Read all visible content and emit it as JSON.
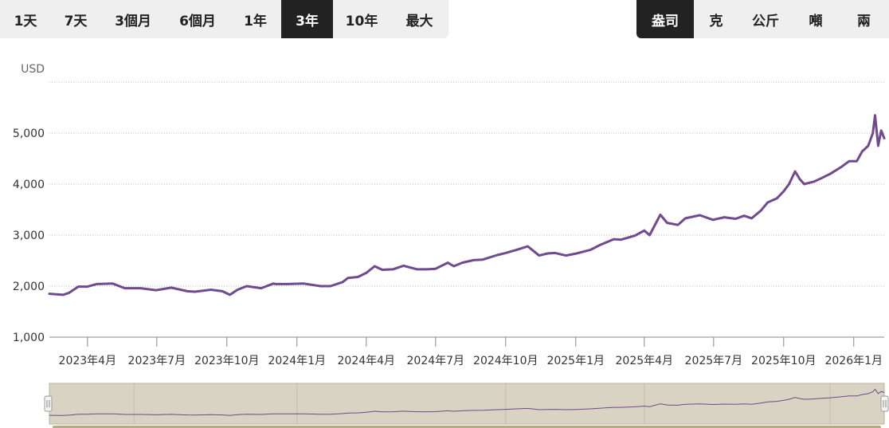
{
  "range_buttons": [
    {
      "label": "1天",
      "active": false
    },
    {
      "label": "7天",
      "active": false
    },
    {
      "label": "3個月",
      "active": false
    },
    {
      "label": "6個月",
      "active": false
    },
    {
      "label": "1年",
      "active": false
    },
    {
      "label": "3年",
      "active": true
    },
    {
      "label": "10年",
      "active": false
    },
    {
      "label": "最大",
      "active": false
    }
  ],
  "unit_buttons": [
    {
      "label": "盎司",
      "active": true
    },
    {
      "label": "克",
      "active": false
    },
    {
      "label": "公斤",
      "active": false
    },
    {
      "label": "噸",
      "active": false
    },
    {
      "label": "兩",
      "active": false
    }
  ],
  "colors": {
    "line": "#6f4a8e",
    "navigator_bg": "#d8d3c2",
    "active_button": "#222222",
    "button_bg": "#efefef"
  },
  "chart_data": {
    "type": "line",
    "ylabel": "USD",
    "ylim": [
      1000,
      6000
    ],
    "yticks": [
      "1,000",
      "2,000",
      "3,000",
      "4,000",
      "5,000"
    ],
    "yvalues": [
      1000,
      2000,
      3000,
      4000,
      5000
    ],
    "xlabels": [
      "2023年4月",
      "2023年7月",
      "2023年10月",
      "2024年1月",
      "2024年4月",
      "2024年7月",
      "2024年10月",
      "2025年1月",
      "2025年4月",
      "2025年7月",
      "2025年10月",
      "2026年1月"
    ],
    "xlabel_dates": [
      "2023-04-01",
      "2023-07-01",
      "2023-10-01",
      "2024-01-01",
      "2024-04-01",
      "2024-07-01",
      "2024-10-01",
      "2025-01-01",
      "2025-04-01",
      "2025-07-01",
      "2025-10-01",
      "2026-01-01"
    ],
    "x_range": [
      "2023-02-10",
      "2026-02-10"
    ],
    "grid": true,
    "series": [
      {
        "x": [
          "2023-02-10",
          "2023-02-28",
          "2023-03-08",
          "2023-03-20",
          "2023-04-01",
          "2023-04-13",
          "2023-05-04",
          "2023-05-20",
          "2023-06-10",
          "2023-06-30",
          "2023-07-20",
          "2023-08-10",
          "2023-08-20",
          "2023-09-10",
          "2023-09-25",
          "2023-10-05",
          "2023-10-15",
          "2023-10-27",
          "2023-11-15",
          "2023-12-01",
          "2023-12-04",
          "2023-12-20",
          "2024-01-10",
          "2024-02-01",
          "2024-02-14",
          "2024-03-01",
          "2024-03-08",
          "2024-03-21",
          "2024-04-01",
          "2024-04-12",
          "2024-04-22",
          "2024-05-06",
          "2024-05-20",
          "2024-06-07",
          "2024-06-20",
          "2024-07-01",
          "2024-07-17",
          "2024-07-25",
          "2024-08-05",
          "2024-08-20",
          "2024-09-01",
          "2024-09-20",
          "2024-10-01",
          "2024-10-15",
          "2024-10-30",
          "2024-11-14",
          "2024-11-25",
          "2024-12-05",
          "2024-12-19",
          "2025-01-02",
          "2025-01-20",
          "2025-02-01",
          "2025-02-20",
          "2025-03-01",
          "2025-03-20",
          "2025-04-01",
          "2025-04-08",
          "2025-04-22",
          "2025-05-01",
          "2025-05-15",
          "2025-05-25",
          "2025-06-13",
          "2025-06-30",
          "2025-07-15",
          "2025-07-30",
          "2025-08-10",
          "2025-08-20",
          "2025-09-01",
          "2025-09-10",
          "2025-09-22",
          "2025-10-01",
          "2025-10-08",
          "2025-10-16",
          "2025-10-22",
          "2025-10-28",
          "2025-11-10",
          "2025-11-20",
          "2025-12-01",
          "2025-12-15",
          "2025-12-26",
          "2026-01-05",
          "2026-01-12",
          "2026-01-20",
          "2026-01-26",
          "2026-01-29",
          "2026-02-02",
          "2026-02-06",
          "2026-02-10"
        ],
        "values": [
          1850,
          1830,
          1870,
          1990,
          1990,
          2040,
          2050,
          1960,
          1960,
          1920,
          1970,
          1900,
          1890,
          1930,
          1900,
          1830,
          1930,
          2000,
          1960,
          2050,
          2040,
          2040,
          2050,
          2000,
          2000,
          2080,
          2160,
          2180,
          2260,
          2390,
          2320,
          2330,
          2400,
          2330,
          2330,
          2340,
          2460,
          2390,
          2460,
          2510,
          2520,
          2610,
          2650,
          2710,
          2780,
          2600,
          2640,
          2650,
          2600,
          2640,
          2710,
          2800,
          2920,
          2910,
          2990,
          3090,
          3000,
          3400,
          3240,
          3200,
          3330,
          3390,
          3300,
          3350,
          3320,
          3380,
          3330,
          3480,
          3640,
          3720,
          3860,
          4000,
          4250,
          4100,
          4000,
          4050,
          4120,
          4200,
          4330,
          4450,
          4450,
          4640,
          4750,
          5000,
          5350,
          4750,
          5050,
          4900
        ]
      }
    ]
  }
}
